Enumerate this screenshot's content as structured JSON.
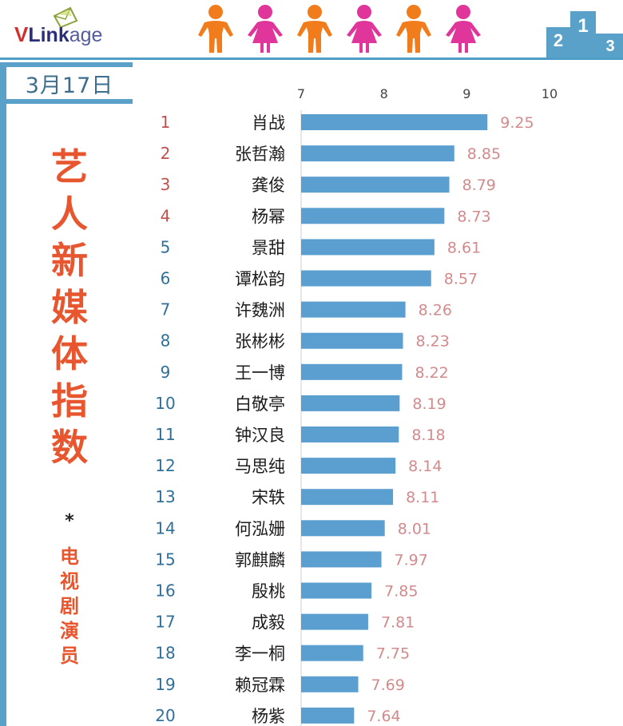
{
  "logo": {
    "part1": "V",
    "part2": "Link",
    "part3": "age"
  },
  "date": "3月17日",
  "side_title": [
    "艺",
    "人",
    "新",
    "媒",
    "体",
    "指",
    "数"
  ],
  "side_star": "*",
  "side_subtitle": [
    "电",
    "视",
    "剧",
    "演",
    "员"
  ],
  "colors": {
    "bar": "#5b9fd1",
    "rank_top": "#c0504d",
    "rank_rest": "#2f6f9a",
    "accent_orange": "#f07c1c",
    "accent_magenta": "#e0359a",
    "panel_border": "#5aa1c9"
  },
  "icons": [
    "male-figure-icon",
    "female-figure-icon",
    "male-figure-icon",
    "female-figure-icon",
    "male-figure-icon",
    "female-figure-icon",
    "podium-icon",
    "logo-envelope-icon"
  ],
  "podium_numbers": [
    "2",
    "1",
    "3"
  ],
  "chart_data": {
    "type": "bar",
    "orientation": "horizontal",
    "title": "艺人新媒体指数",
    "subtitle": "电视剧演员",
    "xlim": [
      7,
      10
    ],
    "ticks": [
      7,
      8,
      9,
      10
    ],
    "ranks": [
      1,
      2,
      3,
      4,
      5,
      6,
      7,
      8,
      9,
      10,
      11,
      12,
      13,
      14,
      15,
      16,
      17,
      18,
      19,
      20
    ],
    "categories": [
      "肖战",
      "张哲瀚",
      "龚俊",
      "杨幂",
      "景甜",
      "谭松韵",
      "许魏洲",
      "张彬彬",
      "王一博",
      "白敬亭",
      "钟汉良",
      "马思纯",
      "宋轶",
      "何泓姗",
      "郭麒麟",
      "殷桃",
      "成毅",
      "李一桐",
      "赖冠霖",
      "杨紫"
    ],
    "values": [
      9.25,
      8.85,
      8.79,
      8.73,
      8.61,
      8.57,
      8.26,
      8.23,
      8.22,
      8.19,
      8.18,
      8.14,
      8.11,
      8.01,
      7.97,
      7.85,
      7.81,
      7.75,
      7.69,
      7.64
    ],
    "grid": false,
    "legend": "none"
  }
}
